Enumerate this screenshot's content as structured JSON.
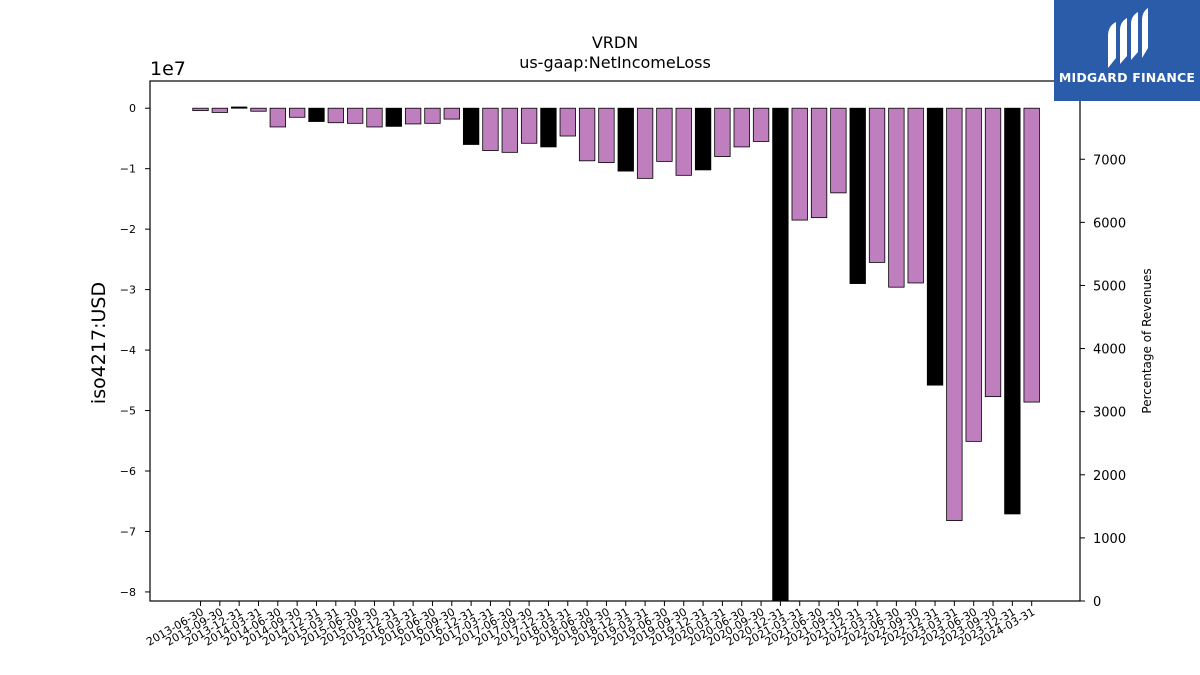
{
  "chart_data": {
    "type": "bar",
    "title": "VRDN",
    "subtitle": "us-gaap:NetIncomeLoss",
    "ylabel": "iso4217:USD",
    "y_offset_label": "1e7",
    "y2label": "Percentage of Revenues",
    "ylim": [
      -81500000,
      4500000
    ],
    "y2lim": [
      0,
      8240
    ],
    "yticks": [
      0,
      -1,
      -2,
      -3,
      -4,
      -5,
      -6,
      -7,
      -8
    ],
    "y2ticks": [
      0,
      1000,
      2000,
      3000,
      4000,
      5000,
      6000,
      7000,
      8000
    ],
    "colors": {
      "quarterly": "#bf7fbf",
      "annual": "#000000"
    },
    "categories": [
      "2013-06-30",
      "2013-09-30",
      "2013-12-31",
      "2014-03-31",
      "2014-06-30",
      "2014-09-30",
      "2014-12-31",
      "2015-03-31",
      "2015-06-30",
      "2015-09-30",
      "2015-12-31",
      "2016-03-31",
      "2016-06-30",
      "2016-09-30",
      "2016-12-31",
      "2017-03-31",
      "2017-06-30",
      "2017-09-30",
      "2017-12-31",
      "2018-03-31",
      "2018-06-30",
      "2018-09-30",
      "2018-12-31",
      "2019-03-31",
      "2019-06-30",
      "2019-09-30",
      "2019-12-31",
      "2020-03-31",
      "2020-06-30",
      "2020-09-30",
      "2020-12-31",
      "2021-03-31",
      "2021-06-30",
      "2021-09-30",
      "2021-12-31",
      "2022-03-31",
      "2022-06-30",
      "2022-09-30",
      "2022-12-31",
      "2023-03-31",
      "2023-06-30",
      "2023-09-30",
      "2023-12-31",
      "2024-03-31"
    ],
    "values": [
      -400000,
      -700000,
      200000,
      -500000,
      -3100000,
      -1500000,
      -2200000,
      -2400000,
      -2500000,
      -3100000,
      -3000000,
      -2600000,
      -2500000,
      -1800000,
      -6000000,
      -7000000,
      -7300000,
      -5800000,
      -6400000,
      -4600000,
      -8700000,
      -9000000,
      -10400000,
      -11600000,
      -8800000,
      -11100000,
      -10200000,
      -8000000,
      -6400000,
      -5500000,
      -82000000,
      -18500000,
      -18100000,
      -14000000,
      -29000000,
      -25500000,
      -29600000,
      -28900000,
      -45800000,
      -68200000,
      -55100000,
      -47700000,
      -67100000,
      -48600000
    ],
    "bar_kind": [
      "q",
      "q",
      "a",
      "q",
      "q",
      "q",
      "a",
      "q",
      "q",
      "q",
      "a",
      "q",
      "q",
      "q",
      "a",
      "q",
      "q",
      "q",
      "a",
      "q",
      "q",
      "q",
      "a",
      "q",
      "q",
      "q",
      "a",
      "q",
      "q",
      "q",
      "a",
      "q",
      "q",
      "q",
      "a",
      "q",
      "q",
      "q",
      "a",
      "q",
      "q",
      "q",
      "a",
      "q"
    ]
  },
  "logo": {
    "name": "MIDGARD FINANCE"
  }
}
